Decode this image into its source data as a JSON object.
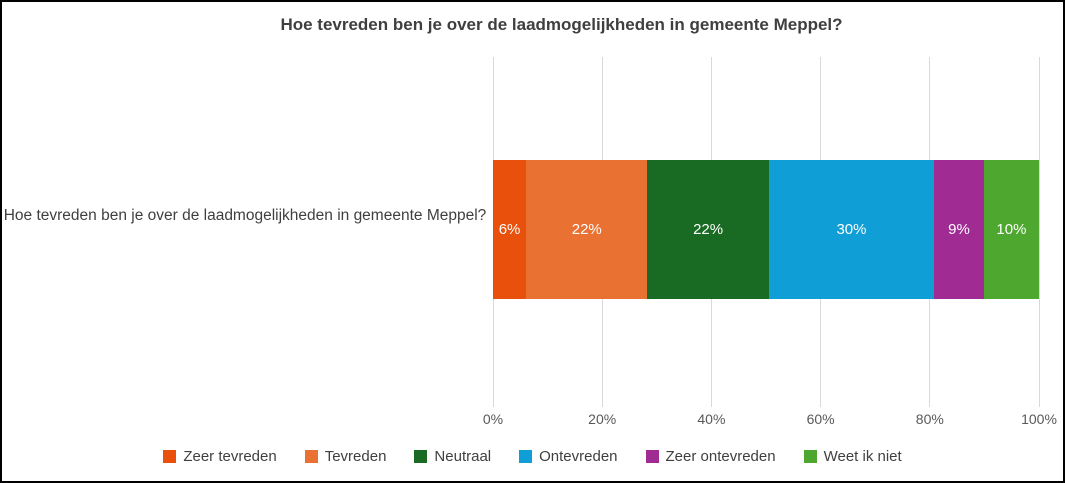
{
  "frame": {
    "background": "#FFFFFF",
    "border_color": "#000000"
  },
  "chart_data": {
    "type": "bar",
    "subtype": "stacked-100",
    "orientation": "horizontal",
    "title": "Hoe tevreden ben je over de laadmogelijkheden in gemeente Meppel?",
    "categories": [
      "Hoe tevreden ben je over de laadmogelijkheden in gemeente Meppel?"
    ],
    "series": [
      {
        "name": "Zeer tevreden",
        "values": [
          6
        ],
        "data_label": "6%",
        "color": "#E8500B"
      },
      {
        "name": "Tevreden",
        "values": [
          22
        ],
        "data_label": "22%",
        "color": "#E97132"
      },
      {
        "name": "Neutraal",
        "values": [
          22
        ],
        "data_label": "22%",
        "color": "#196B24"
      },
      {
        "name": "Ontevreden",
        "values": [
          30
        ],
        "data_label": "30%",
        "color": "#0F9ED5"
      },
      {
        "name": "Zeer ontevreden",
        "values": [
          9
        ],
        "data_label": "9%",
        "color": "#A02B93"
      },
      {
        "name": "Weet ik niet",
        "values": [
          10
        ],
        "data_label": "10%",
        "color": "#4EA72E"
      }
    ],
    "x_axis": {
      "ticks": [
        "0%",
        "20%",
        "40%",
        "60%",
        "80%",
        "100%"
      ],
      "range": [
        0,
        100
      ],
      "gridlines": true,
      "gridline_color": "#D9D9D9",
      "tick_label_color": "#595959"
    },
    "legend": {
      "position": "bottom"
    },
    "data_label_color": "#FFFFFF",
    "title_color": "#3F3F3F",
    "category_label_color": "#3F3F3F"
  }
}
